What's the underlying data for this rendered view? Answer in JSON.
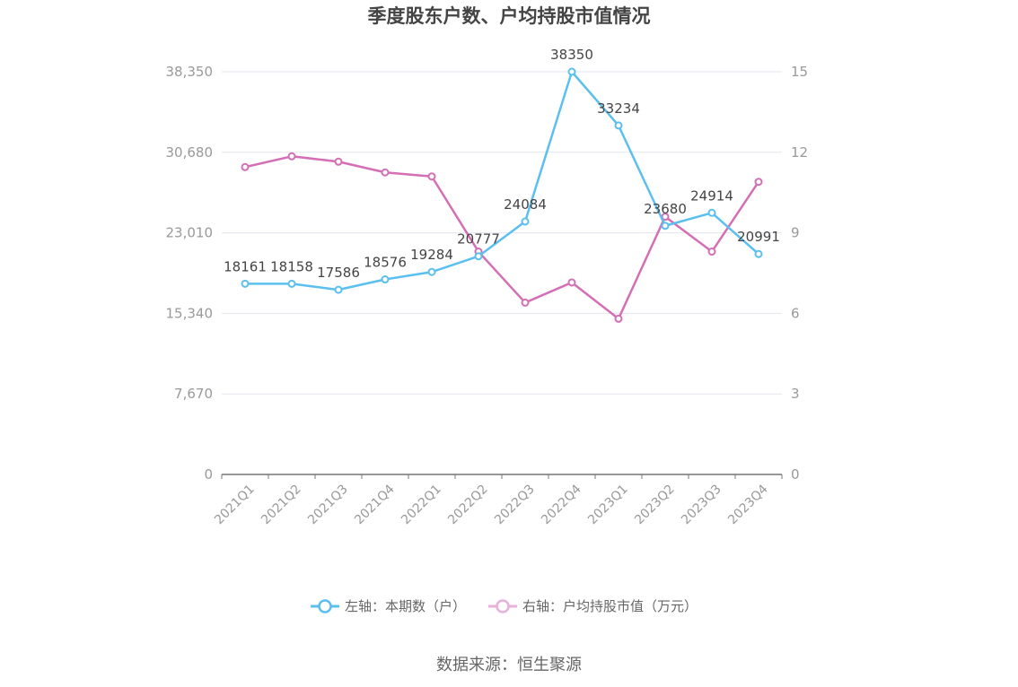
{
  "chart_data": {
    "type": "line",
    "title": "季度股东户数、户均持股市值情况",
    "categories": [
      "2021Q1",
      "2021Q2",
      "2021Q3",
      "2021Q4",
      "2022Q1",
      "2022Q2",
      "2022Q3",
      "2022Q4",
      "2023Q1",
      "2023Q2",
      "2023Q3",
      "2023Q4"
    ],
    "left_axis": {
      "ticks": [
        "0",
        "7,670",
        "15,340",
        "23,010",
        "30,680",
        "38,350"
      ],
      "min": 0,
      "max": 38350
    },
    "right_axis": {
      "ticks": [
        "0",
        "3",
        "6",
        "9",
        "12",
        "15"
      ],
      "min": 0,
      "max": 15
    },
    "series": [
      {
        "name": "左轴：本期数（户）",
        "axis": "left",
        "color": "#5bbfef",
        "values": [
          18161,
          18158,
          17586,
          18576,
          19284,
          20777,
          24084,
          38350,
          33234,
          23680,
          24914,
          20991
        ],
        "labels": [
          "18161",
          "18158",
          "17586",
          "18576",
          "19284",
          "20777",
          "24084",
          "38350",
          "33234",
          "23680",
          "24914",
          "20991"
        ]
      },
      {
        "name": "右轴：户均持股市值（万元）",
        "axis": "right",
        "color": "#d46fb5",
        "values": [
          11.45,
          11.85,
          11.65,
          11.25,
          11.1,
          8.3,
          6.4,
          7.15,
          5.8,
          9.6,
          8.3,
          10.9
        ]
      }
    ],
    "legend_position": "bottom",
    "grid": true
  },
  "source": "数据来源：恒生聚源"
}
